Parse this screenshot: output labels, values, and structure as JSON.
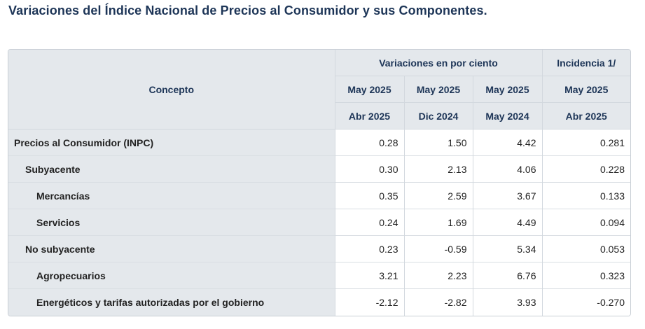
{
  "title": "Variaciones del Índice Nacional de Precios al Consumidor y sus Componentes.",
  "table": {
    "header": {
      "concept": "Concepto",
      "group_variations": "Variaciones en por ciento",
      "group_incidence": "Incidencia 1/",
      "row2": [
        "May 2025",
        "May 2025",
        "May 2025",
        "May 2025"
      ],
      "row3": [
        "Abr 2025",
        "Dic 2024",
        "May 2024",
        "Abr 2025"
      ]
    },
    "rows": [
      {
        "label": "Precios al Consumidor (INPC)",
        "level": 0,
        "values": [
          "0.28",
          "1.50",
          "4.42",
          "0.281"
        ]
      },
      {
        "label": "Subyacente",
        "level": 1,
        "values": [
          "0.30",
          "2.13",
          "4.06",
          "0.228"
        ]
      },
      {
        "label": "Mercancías",
        "level": 2,
        "values": [
          "0.35",
          "2.59",
          "3.67",
          "0.133"
        ]
      },
      {
        "label": "Servicios",
        "level": 2,
        "values": [
          "0.24",
          "1.69",
          "4.49",
          "0.094"
        ]
      },
      {
        "label": "No subyacente",
        "level": 1,
        "values": [
          "0.23",
          "-0.59",
          "5.34",
          "0.053"
        ]
      },
      {
        "label": "Agropecuarios",
        "level": 2,
        "values": [
          "3.21",
          "2.23",
          "6.76",
          "0.323"
        ]
      },
      {
        "label": "Energéticos y tarifas autorizadas por el gobierno",
        "level": 2,
        "values": [
          "-2.12",
          "-2.82",
          "3.93",
          "-0.270"
        ]
      }
    ]
  }
}
